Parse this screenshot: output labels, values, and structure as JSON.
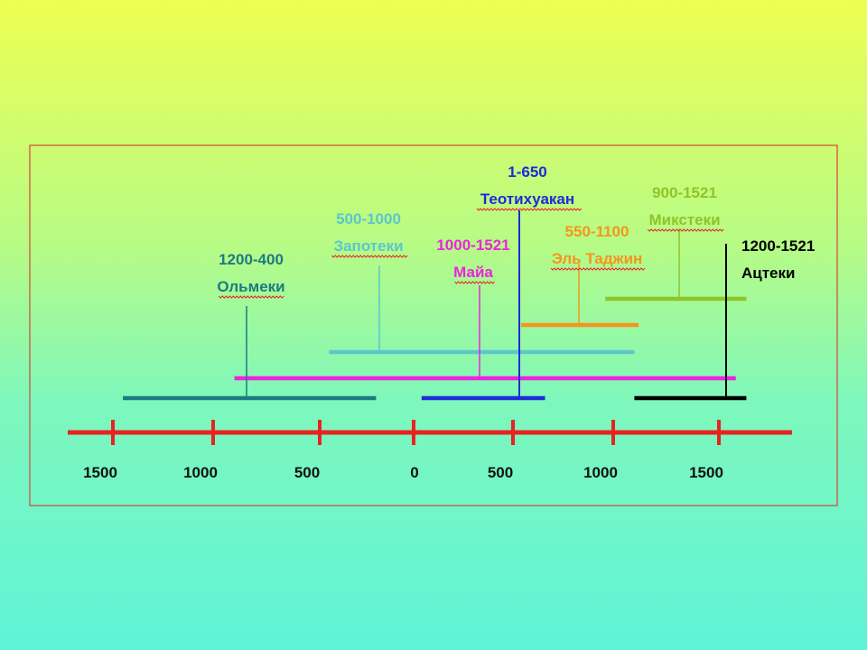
{
  "timeline": {
    "axis_color": "#e8231f",
    "ticks": [
      {
        "value": -1500,
        "label": "1500"
      },
      {
        "value": -1000,
        "label": "1000"
      },
      {
        "value": -500,
        "label": "500"
      },
      {
        "value": 0,
        "label": "0"
      },
      {
        "value": 500,
        "label": "500"
      },
      {
        "value": 1000,
        "label": "1000"
      },
      {
        "value": 1500,
        "label": "1500"
      }
    ],
    "cultures": [
      {
        "id": "olmecs",
        "dates": "1200-400",
        "name": "Ольмеки",
        "start": -1450,
        "end": -200,
        "color": "#1d7a80"
      },
      {
        "id": "zapotecs",
        "dates": "500-1000",
        "name": "Запотеки",
        "start": -450,
        "end": 1100,
        "color": "#5cc6cc"
      },
      {
        "id": "maya",
        "dates": "1000-1521",
        "name": "Майа",
        "start": -900,
        "end": 1580,
        "color": "#ee22e0"
      },
      {
        "id": "teotihuacan",
        "dates": "1-650",
        "name": "Теотихуакан",
        "start": 40,
        "end": 660,
        "color": "#1f2bd8"
      },
      {
        "id": "el-tajin",
        "dates": "550-1100",
        "name": "Эль Таджин",
        "start": 540,
        "end": 1120,
        "color": "#f7941d"
      },
      {
        "id": "mixtecs",
        "dates": "900-1521",
        "name": "Микстеки",
        "start": 960,
        "end": 1630,
        "color": "#8fc42a"
      },
      {
        "id": "aztecs",
        "dates": "1200-1521",
        "name": "Ацтеки",
        "start": 1100,
        "end": 1630,
        "color": "#000000"
      }
    ]
  }
}
